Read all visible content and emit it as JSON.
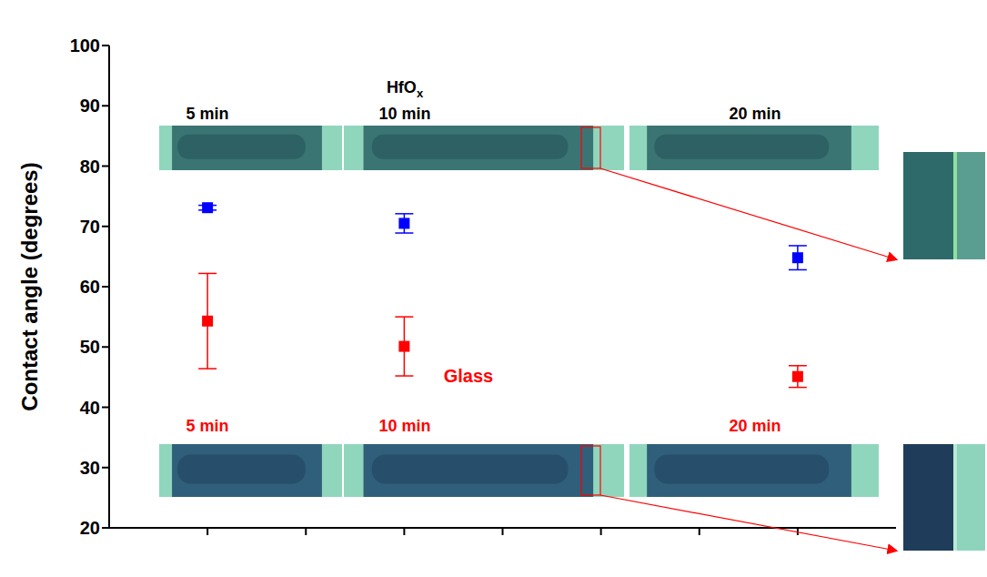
{
  "chart_data": {
    "type": "scatter",
    "y_label": "Contact angle (degrees)",
    "x": [
      5,
      10,
      20
    ],
    "xlim": [
      2.5,
      22.5
    ],
    "xticks": [
      5,
      7.5,
      10,
      12.5,
      15,
      17.5,
      20
    ],
    "ylim": [
      20,
      100
    ],
    "yticks": [
      20,
      30,
      40,
      50,
      60,
      70,
      80,
      90,
      100
    ],
    "tick_labels": "y",
    "marker": "square",
    "series": [
      {
        "name": "HfOx",
        "color": "#0000ff",
        "values": [
          73.1,
          70.5,
          64.8
        ],
        "errors": [
          0.4,
          1.6,
          2.0
        ],
        "labels": [
          "5 min",
          "10 min",
          "20 min"
        ]
      },
      {
        "name": "Glass",
        "color": "#ff0000",
        "values": [
          54.3,
          50.1,
          45.1
        ],
        "errors": [
          7.9,
          4.9,
          1.8
        ],
        "labels": [
          "5 min",
          "10 min",
          "20 min"
        ]
      }
    ]
  }
}
